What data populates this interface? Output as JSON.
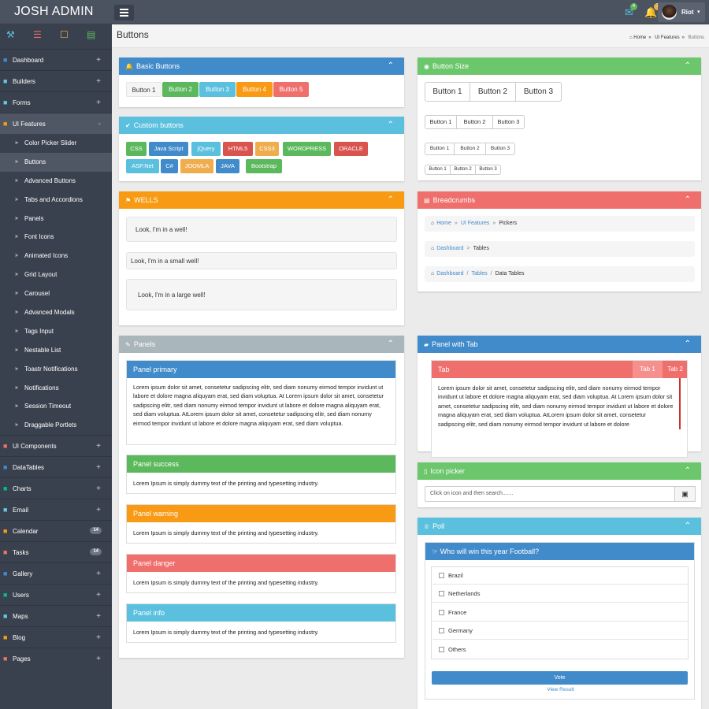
{
  "app": {
    "title": "JOSH ADMIN"
  },
  "topbar": {
    "mail_badge": "4",
    "alert_badge": "7",
    "user_name": "Riot",
    "mail_color": "#5bc0de",
    "alert_color": "#f0ad4e"
  },
  "sidebar": {
    "items": [
      {
        "label": "Dashboard",
        "icon": "home-icon",
        "color": "#418bca",
        "suffix": "+"
      },
      {
        "label": "Builders",
        "icon": "network-icon",
        "color": "#67c5df",
        "suffix": "+"
      },
      {
        "label": "Forms",
        "icon": "document-icon",
        "color": "#67c5df",
        "suffix": "+"
      },
      {
        "label": "UI Features",
        "icon": "pencil-icon",
        "color": "#f89a14",
        "suffix": "-"
      },
      {
        "label": "UI Components",
        "icon": "flask-icon",
        "color": "#ef6f6c",
        "suffix": "+"
      },
      {
        "label": "DataTables",
        "icon": "table-icon",
        "color": "#418bca",
        "suffix": "+"
      },
      {
        "label": "Charts",
        "icon": "bar-chart-icon",
        "color": "#01bc8c",
        "suffix": "+"
      },
      {
        "label": "Email",
        "icon": "mail-icon",
        "color": "#67c5df",
        "suffix": "+"
      },
      {
        "label": "Calendar",
        "icon": "calendar-icon",
        "color": "#f89a14",
        "badge": "14"
      },
      {
        "label": "Tasks",
        "icon": "tasks-icon",
        "color": "#ef6f6c",
        "badge": "14"
      },
      {
        "label": "Gallery",
        "icon": "picture-icon",
        "color": "#418bca",
        "suffix": "+"
      },
      {
        "label": "Users",
        "icon": "users-icon",
        "color": "#01bc8c",
        "suffix": "+"
      },
      {
        "label": "Maps",
        "icon": "map-icon",
        "color": "#67c5df",
        "suffix": "+"
      },
      {
        "label": "Blog",
        "icon": "comment-icon",
        "color": "#f89a14",
        "suffix": "+"
      },
      {
        "label": "Pages",
        "icon": "flag-icon",
        "color": "#ef6f6c",
        "suffix": "+"
      }
    ],
    "sub_items": [
      "Color Picker Slider",
      "Buttons",
      "Advanced Buttons",
      "Tabs and Accordions",
      "Panels",
      "Font Icons",
      "Animated Icons",
      "Grid Layout",
      "Carousel",
      "Advanced Modals",
      "Tags Input",
      "Nestable List",
      "Toastr Notifications",
      "Notifications",
      "Session Timeout",
      "Draggable Portlets"
    ],
    "current_sub": "Buttons"
  },
  "page": {
    "title": "Buttons",
    "breadcrumb": [
      "Home",
      "UI Features",
      "Buttons"
    ]
  },
  "basic_buttons": {
    "title": "Basic Buttons",
    "buttons": [
      {
        "label": "Button 1",
        "color": "#f5f5f5"
      },
      {
        "label": "Button 2",
        "color": "#5cb85c"
      },
      {
        "label": "Button 3",
        "color": "#5bc0de"
      },
      {
        "label": "Button 4",
        "color": "#f89a14"
      },
      {
        "label": "Button 5",
        "color": "#ef6f6c"
      }
    ]
  },
  "custom_buttons": {
    "title": "Custom buttons",
    "buttons": [
      {
        "label": "CSS",
        "color": "#5cb85c"
      },
      {
        "label": "Java Script",
        "color": "#418bca"
      },
      {
        "label": "jQuery",
        "color": "#5bc0de"
      },
      {
        "label": "HTML5",
        "color": "#d9534f"
      },
      {
        "label": "CSS3",
        "color": "#f0ad4e"
      },
      {
        "label": "WORDPRESS",
        "color": "#5cb85c"
      },
      {
        "label": "ORACLE",
        "color": "#d9534f"
      },
      {
        "label": "ASP.Net",
        "color": "#5bc0de"
      },
      {
        "label": "C#",
        "color": "#418bca"
      },
      {
        "label": "JOOMLA",
        "color": "#f0ad4e"
      },
      {
        "label": "JAVA",
        "color": "#418bca"
      },
      {
        "label": "Bootstrap",
        "color": "#5cb85c"
      }
    ]
  },
  "wells": {
    "title": "WELLS",
    "items": [
      "Look, I'm in a well!",
      "Look, I'm in a small well!",
      "Look, I'm in a large well!"
    ]
  },
  "button_size": {
    "title": "Button Size",
    "groups": [
      [
        "Button 1",
        "Button 2",
        "Button 3"
      ],
      [
        "Button 1",
        "Button 2",
        "Button 3"
      ],
      [
        "Button 1",
        "Button 2",
        "Button 3"
      ],
      [
        "Button 1",
        "Button 2",
        "Button 3"
      ]
    ]
  },
  "breadcrumbs": {
    "title": "Breadcrumbs",
    "rows": [
      {
        "links": [
          "Home",
          "UI Features"
        ],
        "sep": "»",
        "current": "Pickers"
      },
      {
        "links": [
          "Dashboard"
        ],
        "sep": ">",
        "current": "Tables"
      },
      {
        "links": [
          "Dashboard",
          "Tables"
        ],
        "sep": "/",
        "current": "Data Tables"
      }
    ]
  },
  "panels": {
    "title": "Panels",
    "items": [
      {
        "title": "Panel primary",
        "color": "#418bca",
        "body": "Lorem ipsum dolor sit amet, consetetur sadipscing elitr, sed diam nonumy eirmod tempor invidunt ut labore et dolore magna aliquyam erat, sed diam voluptua. At Lorem ipsum dolor sit amet, consetetur sadipscing elitr, sed diam nonumy eirmod tempor invidunt ut labore et dolore magna aliquyam erat, sed diam voluptua. AtLorem ipsum dolor sit amet, consetetur sadipscing elitr, sed diam nonumy eirmod tempor invidunt ut labore et dolore magna aliquyam erat, sed diam voluptua."
      },
      {
        "title": "Panel success",
        "color": "#5cb85c",
        "body": "Lorem Ipsum is simply dummy text of the printing and typesetting industry."
      },
      {
        "title": "Panel warning",
        "color": "#f89a14",
        "body": "Lorem Ipsum is simply dummy text of the printing and typesetting industry."
      },
      {
        "title": "Panel danger",
        "color": "#ef6f6c",
        "body": "Lorem Ipsum is simply dummy text of the printing and typesetting industry."
      },
      {
        "title": "Panel info",
        "color": "#5bc0de",
        "body": "Lorem Ipsum is simply dummy text of the printing and typesetting industry."
      }
    ]
  },
  "panel_tab": {
    "title": "Panel with Tab",
    "tab_title": "Tab",
    "tabs": [
      "Tab 1",
      "Tab 2"
    ],
    "body": "Lorem ipsum dolor sit amet, consetetur sadipscing elitr, sed diam nonumy eirmod tempor invidunt ut labore et dolore magna aliquyam erat, sed diam voluptua. At Lorem ipsum dolor sit amet, consetetur sadipscing elitr, sed diam nonumy eirmod tempor invidunt ut labore et dolore magna aliquyam erat, sed diam voluptua. AtLorem ipsum dolor sit amet, consetetur sadipscing elitr, sed diam nonumy eirmod tempor invidunt ut labore et dolore"
  },
  "icon_picker": {
    "title": "Icon picker",
    "placeholder": "Click on icon and then search......."
  },
  "poll": {
    "title": "Poll",
    "question": "Who will win this year Football?",
    "options": [
      "Brazil",
      "Netherlands",
      "France",
      "Germany",
      "Others"
    ],
    "vote_label": "Vote",
    "result_label": "View Result"
  },
  "colors": {
    "primary": "#418bca",
    "success": "#6cc66c",
    "warning": "#f89a14",
    "danger": "#ef6f6c",
    "info": "#5bc0de",
    "default": "#a9b6bc",
    "sidebar": "#3a414e",
    "topbar": "#4b5260"
  }
}
